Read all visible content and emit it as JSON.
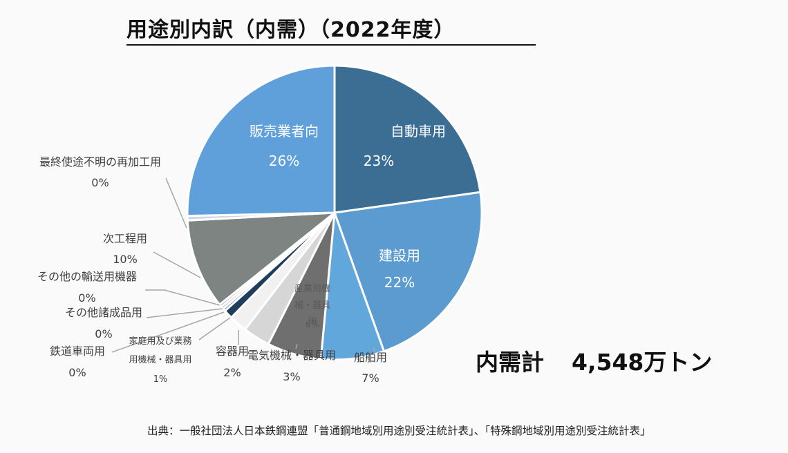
{
  "title": "用途別内訳（内需）（2022年度）",
  "total": {
    "label": "内需計",
    "value": "4,548万トン"
  },
  "source": "出典：一般社団法人日本鉄鋼連盟「普通鋼地域別用途別受注統計表」、「特殊鋼地域別用途別受注統計表」",
  "colors": {
    "background": "#fafafa",
    "slice_border": "#ffffff",
    "inner_label_light": "#ffffff",
    "inner_label_dark": "#595959",
    "outer_label": "#404040",
    "leader_line": "#a6a6a6"
  },
  "chart_data": {
    "type": "pie",
    "title": "用途別内訳（内需）（2022年度）",
    "unit": "%",
    "start": "12 o'clock, clockwise",
    "slices": [
      {
        "name": "自動車用",
        "value": 23,
        "label": "23%",
        "color": "#3c6d93",
        "label_position": "inside"
      },
      {
        "name": "建設用",
        "value": 22,
        "label": "22%",
        "color": "#5b9bd0",
        "label_position": "inside"
      },
      {
        "name": "船舶用",
        "value": 7,
        "label": "7%",
        "color": "#62a7db",
        "label_position": "outside"
      },
      {
        "name": "産業用機械・器具用",
        "value": 6,
        "label": "6%",
        "color": "#6f6f6f",
        "label_position": "inside"
      },
      {
        "name": "電気機械・器具用",
        "value": 3,
        "label": "3%",
        "color": "#d6d6d6",
        "label_position": "outside"
      },
      {
        "name": "容器用",
        "value": 2,
        "label": "2%",
        "color": "#f1f1f1",
        "label_position": "outside"
      },
      {
        "name": "家庭用及び業務用機械・器具用",
        "value": 1,
        "label": "1%",
        "color": "#1f3d5c",
        "label_position": "outside"
      },
      {
        "name": "鉄道車両用",
        "value": 0.3,
        "label": "0%",
        "color": "#4a7fae",
        "label_position": "outside"
      },
      {
        "name": "その他諸成品用",
        "value": 0.3,
        "label": "0%",
        "color": "#b9b9b9",
        "label_position": "outside"
      },
      {
        "name": "その他の輸送用機器",
        "value": 0.3,
        "label": "0%",
        "color": "#9aa5b1",
        "label_position": "outside"
      },
      {
        "name": "次工程用",
        "value": 10,
        "label": "10%",
        "color": "#7d8482",
        "label_position": "outside"
      },
      {
        "name": "最終使途不明の再加工用",
        "value": 0.5,
        "label": "0%",
        "color": "#cfd8e3",
        "label_position": "outside"
      },
      {
        "name": "販売業者向",
        "value": 25.6,
        "label": "26%",
        "color": "#5fa0da",
        "label_position": "inside"
      }
    ]
  }
}
